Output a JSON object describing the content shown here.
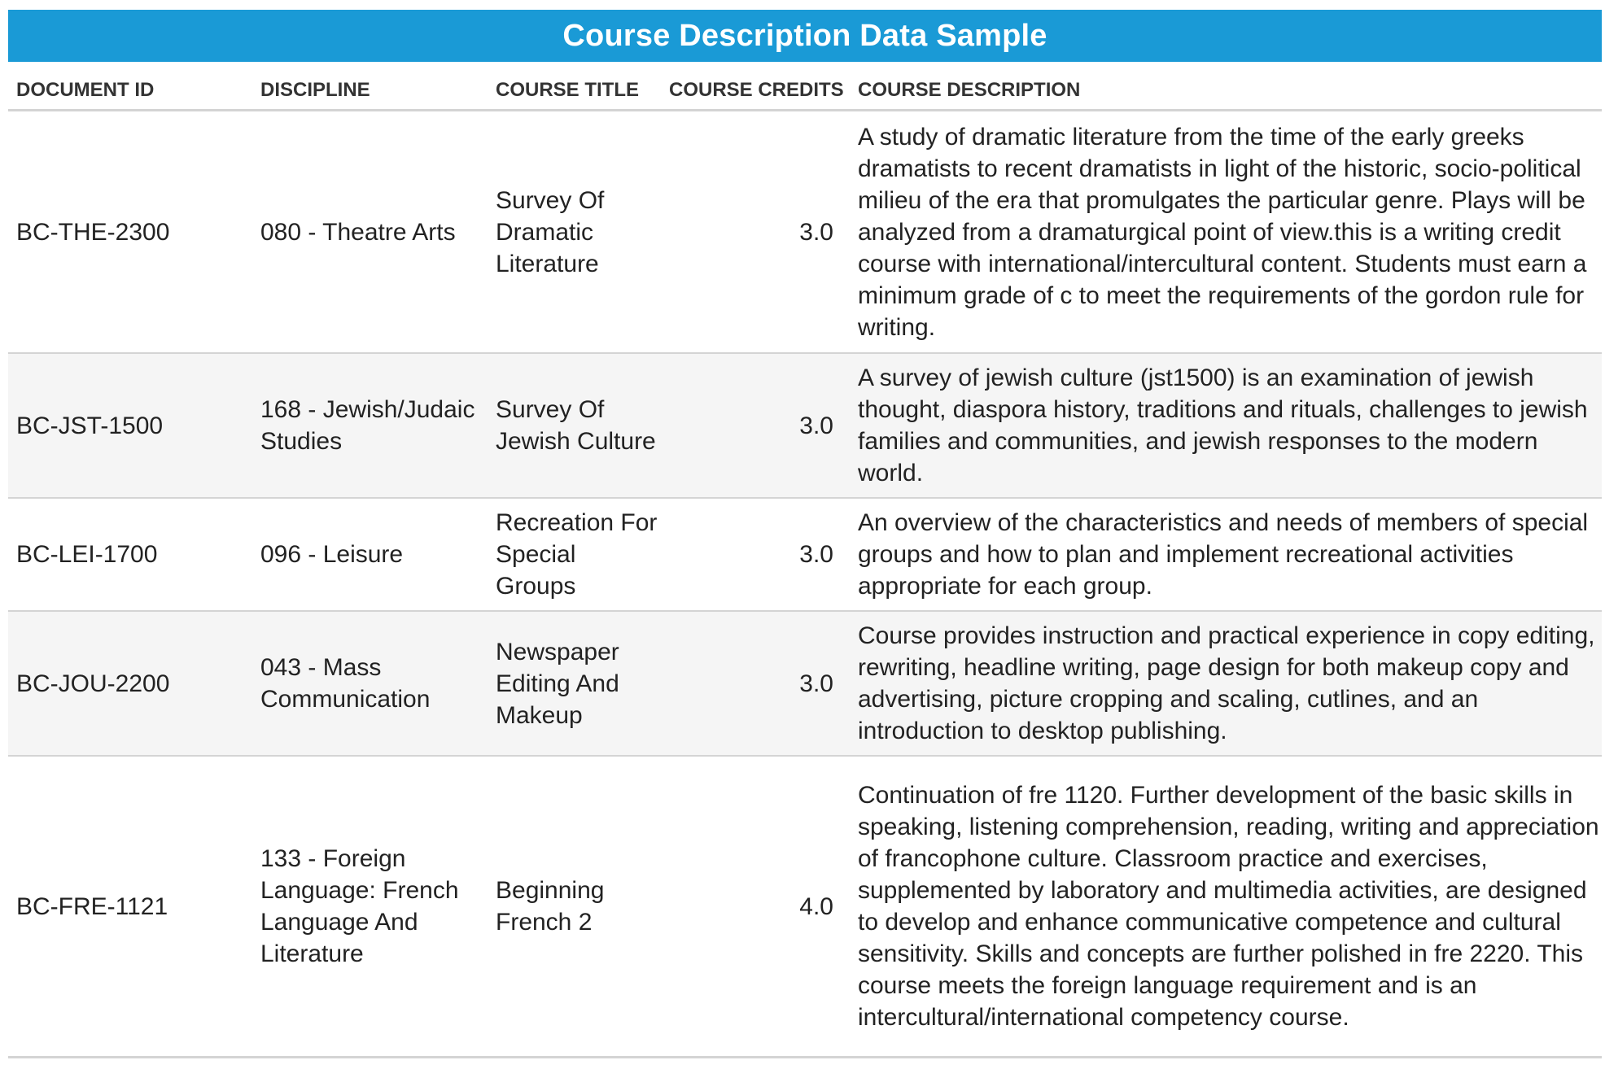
{
  "title": "Course Description Data Sample",
  "accent_color": "#1a9ad6",
  "columns": {
    "document_id": "DOCUMENT ID",
    "discipline": "DISCIPLINE",
    "course_title": "COURSE TITLE",
    "course_credits": "COURSE CREDITS",
    "course_description": "COURSE DESCRIPTION"
  },
  "rows": [
    {
      "document_id": "BC-THE-2300",
      "discipline": "080 - Theatre Arts",
      "course_title": "Survey Of Dramatic Literature",
      "course_credits": "3.0",
      "course_description": "A study of dramatic literature from the time of the early greeks dramatists to recent dramatists in light of the historic, socio-political milieu of the era that promulgates the particular genre. Plays will be analyzed from a dramaturgical point of view.this is a writing credit course with international/intercultural content. Students must earn a minimum grade of c to meet the requirements of the gordon rule for writing."
    },
    {
      "document_id": "BC-JST-1500",
      "discipline": "168 - Jewish/Judaic Studies",
      "course_title": "Survey Of Jewish Culture",
      "course_credits": "3.0",
      "course_description": "A survey of jewish culture (jst1500) is an examination of jewish thought, diaspora history, traditions and rituals, challenges to jewish families and communities, and jewish responses to the modern world."
    },
    {
      "document_id": "BC-LEI-1700",
      "discipline": "096 - Leisure",
      "course_title": "Recreation For Special Groups",
      "course_credits": "3.0",
      "course_description": "An overview of the characteristics and needs of members of special groups and how to plan and implement recreational activities appropriate for each group."
    },
    {
      "document_id": "BC-JOU-2200",
      "discipline": "043 - Mass Communication",
      "course_title": "Newspaper Editing And Makeup",
      "course_credits": "3.0",
      "course_description": "Course provides instruction and practical experience in copy editing, rewriting, headline writing, page design for both makeup copy and advertising, picture cropping and scaling, cutlines, and an introduction to desktop publishing."
    },
    {
      "document_id": "BC-FRE-1121",
      "discipline": "133 - Foreign Language: French Language And Literature",
      "course_title": "Beginning French 2",
      "course_credits": "4.0",
      "course_description": "Continuation of fre 1120. Further development of the basic skills in speaking, listening comprehension, reading, writing and appreciation of francophone culture. Classroom practice and exercises, supplemented by laboratory and multimedia activities, are designed to develop and enhance communicative competence and cultural sensitivity. Skills and concepts are further polished in fre 2220. This course meets the foreign language requirement and is an intercultural/international competency course."
    }
  ]
}
